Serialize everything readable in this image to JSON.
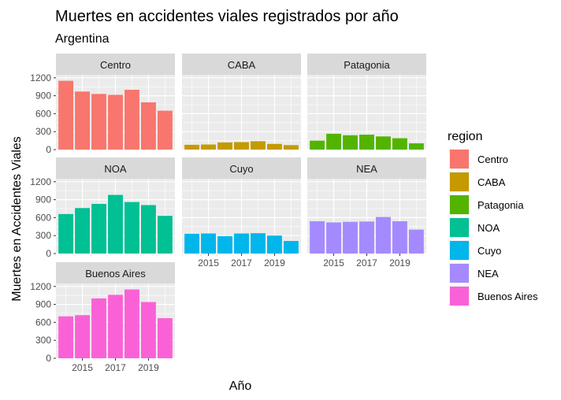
{
  "chart_data": {
    "type": "bar",
    "title": "Muertes en accidentes viales registrados por año",
    "subtitle": "Argentina",
    "xlabel": "Año",
    "ylabel": "Muertes en Accidentes Viales",
    "x": [
      2014,
      2015,
      2016,
      2017,
      2018,
      2019,
      2020
    ],
    "x_ticks": [
      2015,
      2017,
      2019
    ],
    "y_ticks": [
      0,
      300,
      600,
      900,
      1200
    ],
    "ylim": [
      0,
      1250
    ],
    "facet": "region",
    "grid": true,
    "legend": {
      "title": "region",
      "placement": "right"
    },
    "series": [
      {
        "name": "Centro",
        "color": "#F8766D",
        "values": [
          1150,
          970,
          930,
          915,
          1000,
          790,
          650
        ]
      },
      {
        "name": "CABA",
        "color": "#C49A00",
        "values": [
          80,
          85,
          120,
          125,
          140,
          95,
          75
        ]
      },
      {
        "name": "Patagonia",
        "color": "#53B400",
        "values": [
          150,
          265,
          240,
          250,
          220,
          190,
          105
        ]
      },
      {
        "name": "NOA",
        "color": "#00C094",
        "values": [
          660,
          760,
          830,
          980,
          860,
          810,
          630
        ]
      },
      {
        "name": "Cuyo",
        "color": "#00B6EB",
        "values": [
          330,
          335,
          290,
          335,
          340,
          300,
          210
        ]
      },
      {
        "name": "NEA",
        "color": "#A58AFF",
        "values": [
          540,
          520,
          530,
          535,
          610,
          540,
          400
        ]
      },
      {
        "name": "Buenos Aires",
        "color": "#FB61D7",
        "values": [
          700,
          720,
          1000,
          1060,
          1150,
          940,
          670
        ]
      }
    ]
  }
}
